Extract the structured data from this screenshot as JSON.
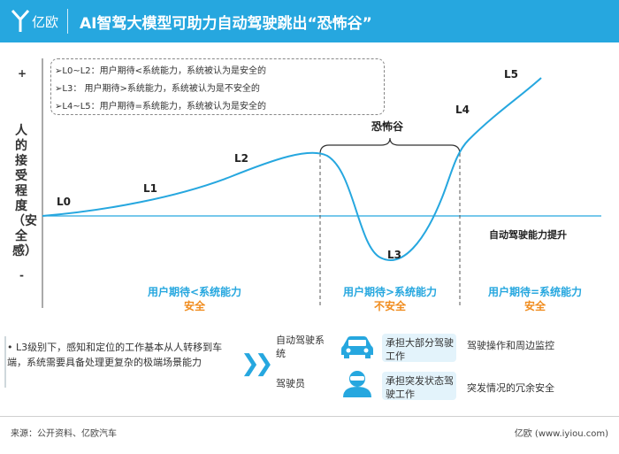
{
  "header": {
    "logo_text": "亿欧",
    "title": "AI智驾大模型可助力自动驾驶跳出“恐怖谷”"
  },
  "chart": {
    "y_label": "人的接受程度（安全感）",
    "y_plus": "+",
    "y_minus": "-",
    "x_label": "自动驾驶能力提升",
    "valley_label": "恐怖谷",
    "levels": [
      "L0",
      "L1",
      "L2",
      "L3",
      "L4",
      "L5"
    ],
    "legend": [
      "➢L0~L2：用户期待<系统能力，系统被认为是安全的",
      "➢L3：  用户期待>系统能力，系统被认为是不安全的",
      "➢L4~L5：用户期待=系统能力，系统被认为是安全的"
    ],
    "zones": [
      {
        "expectation": "用户期待<系统能力",
        "verdict": "安全"
      },
      {
        "expectation": "用户期待>系统能力",
        "verdict": "不安全"
      },
      {
        "expectation": "用户期待=系统能力",
        "verdict": "安全"
      }
    ],
    "colors": {
      "curve": "#26a7df",
      "verdict": "#f08c1e",
      "header": "#26a7df"
    }
  },
  "bottom": {
    "bullet": "• L3级别下，感知和定位的工作基本从人转移到车端，系统需要具备处理更复杂的极端场景能力",
    "system_role": "自动驾驶系统",
    "driver_role": "驾驶员",
    "system_task": "承担大部分驾驶工作",
    "driver_task": "承担突发状态驾驶工作",
    "system_desc": "驾驶操作和周边监控",
    "driver_desc": "突发情况的冗余安全",
    "icons": [
      "car-icon",
      "driver-icon"
    ]
  },
  "footer": {
    "source": "来源：公开资料、亿欧汽车",
    "copyright": "亿欧 (www.iyiou.com)"
  }
}
